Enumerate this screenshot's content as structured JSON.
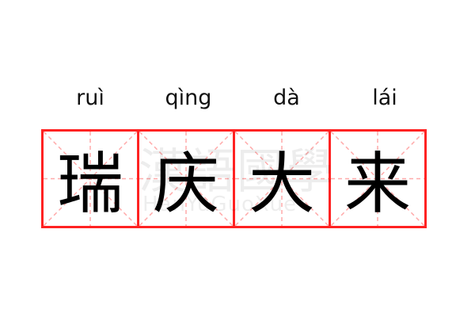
{
  "words": [
    {
      "pinyin": "ruì",
      "char": "瑞"
    },
    {
      "pinyin": "qìng",
      "char": "庆"
    },
    {
      "pinyin": "dà",
      "char": "大"
    },
    {
      "pinyin": "lái",
      "char": "来"
    }
  ],
  "watermark": {
    "hanzi": "漢語國學",
    "latin": "HanYuGuoXue"
  },
  "colors": {
    "border": "#ff2222",
    "guide": "#ffaaaa",
    "text": "#000000"
  }
}
